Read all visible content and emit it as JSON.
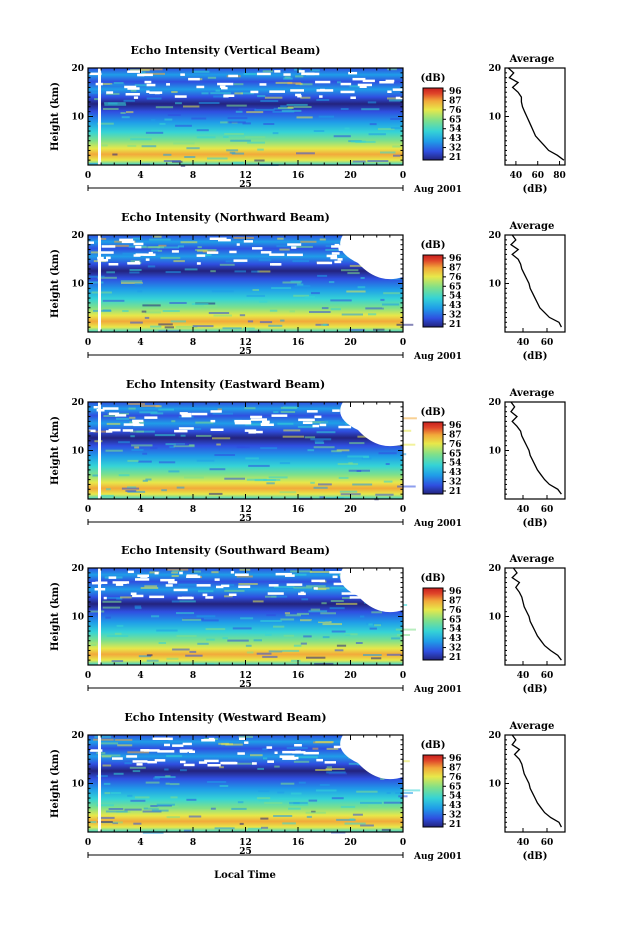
{
  "figure": {
    "bottom_label": "Local Time",
    "date_month_year": "Aug 2001",
    "day_label": "25"
  },
  "colorscale": {
    "unit_label": "(dB)",
    "ticks": [
      "96",
      "87",
      "76",
      "65",
      "54",
      "43",
      "32",
      "21"
    ],
    "colors": [
      "#23237d",
      "#2f4fe0",
      "#1f9de8",
      "#35d3d6",
      "#7fe08a",
      "#e8e84a",
      "#f2a93a",
      "#e0472a",
      "#c81e1e"
    ]
  },
  "chart_data": [
    {
      "type": "heatmap",
      "title": "Echo Intensity (Vertical Beam)",
      "ylabel": "Height (km)",
      "x_ticks": [
        "0",
        "4",
        "8",
        "12",
        "16",
        "20",
        "0"
      ],
      "y_ticks": [
        "20",
        "10"
      ],
      "ylim": [
        0,
        20
      ],
      "xlim": [
        0,
        24
      ],
      "colorbar_range_db": [
        21,
        96
      ],
      "average_profile": {
        "title": "Average",
        "xlabel": "(dB)",
        "x_ticks": [
          "40",
          "60",
          "80"
        ],
        "xlim": [
          30,
          85
        ],
        "heights_km": [
          1,
          2,
          3,
          4,
          5,
          6,
          7,
          8,
          9,
          10,
          11,
          12,
          13,
          14,
          15,
          16,
          17,
          18,
          19,
          20
        ],
        "values_db": [
          84,
          78,
          70,
          66,
          62,
          58,
          56,
          54,
          52,
          50,
          48,
          46,
          45,
          45,
          42,
          37,
          42,
          34,
          38,
          33
        ]
      }
    },
    {
      "type": "heatmap",
      "title": "Echo Intensity (Northward Beam)",
      "ylabel": "Height (km)",
      "x_ticks": [
        "0",
        "4",
        "8",
        "12",
        "16",
        "20",
        "0"
      ],
      "y_ticks": [
        "20",
        "10"
      ],
      "ylim": [
        0,
        20
      ],
      "xlim": [
        0,
        24
      ],
      "colorbar_range_db": [
        21,
        96
      ],
      "average_profile": {
        "title": "Average",
        "xlabel": "(dB)",
        "x_ticks": [
          "40",
          "60"
        ],
        "xlim": [
          25,
          75
        ],
        "heights_km": [
          1,
          2,
          3,
          4,
          5,
          6,
          7,
          8,
          9,
          10,
          11,
          12,
          13,
          14,
          15,
          16,
          17,
          18,
          19,
          20
        ],
        "values_db": [
          72,
          70,
          62,
          58,
          54,
          52,
          50,
          48,
          46,
          45,
          43,
          41,
          39,
          38,
          36,
          31,
          36,
          30,
          34,
          31
        ]
      }
    },
    {
      "type": "heatmap",
      "title": "Echo Intensity (Eastward Beam)",
      "ylabel": "Height (km)",
      "x_ticks": [
        "0",
        "4",
        "8",
        "12",
        "16",
        "20",
        "0"
      ],
      "y_ticks": [
        "20",
        "10"
      ],
      "ylim": [
        0,
        20
      ],
      "xlim": [
        0,
        24
      ],
      "colorbar_range_db": [
        21,
        96
      ],
      "average_profile": {
        "title": "Average",
        "xlabel": "(dB)",
        "x_ticks": [
          "40",
          "60"
        ],
        "xlim": [
          25,
          75
        ],
        "heights_km": [
          1,
          2,
          3,
          4,
          5,
          6,
          7,
          8,
          9,
          10,
          11,
          12,
          13,
          14,
          15,
          16,
          17,
          18,
          19,
          20
        ],
        "values_db": [
          72,
          69,
          62,
          58,
          55,
          52,
          50,
          48,
          46,
          45,
          43,
          41,
          39,
          38,
          35,
          31,
          35,
          30,
          33,
          30
        ]
      }
    },
    {
      "type": "heatmap",
      "title": "Echo Intensity (Southward Beam)",
      "ylabel": "Height (km)",
      "x_ticks": [
        "0",
        "4",
        "8",
        "12",
        "16",
        "20",
        "0"
      ],
      "y_ticks": [
        "20",
        "10"
      ],
      "ylim": [
        0,
        20
      ],
      "xlim": [
        0,
        24
      ],
      "colorbar_range_db": [
        21,
        96
      ],
      "average_profile": {
        "title": "Average",
        "xlabel": "(dB)",
        "x_ticks": [
          "40",
          "60"
        ],
        "xlim": [
          25,
          75
        ],
        "heights_km": [
          1,
          2,
          3,
          4,
          5,
          6,
          7,
          8,
          9,
          10,
          11,
          12,
          13,
          14,
          15,
          16,
          17,
          18,
          19,
          20
        ],
        "values_db": [
          72,
          69,
          63,
          58,
          55,
          52,
          50,
          48,
          46,
          45,
          43,
          41,
          40,
          39,
          37,
          34,
          37,
          31,
          35,
          32
        ]
      }
    },
    {
      "type": "heatmap",
      "title": "Echo Intensity (Westward Beam)",
      "ylabel": "Height (km)",
      "x_ticks": [
        "0",
        "4",
        "8",
        "12",
        "16",
        "20",
        "0"
      ],
      "y_ticks": [
        "20",
        "10"
      ],
      "ylim": [
        0,
        20
      ],
      "xlim": [
        0,
        24
      ],
      "colorbar_range_db": [
        21,
        96
      ],
      "average_profile": {
        "title": "Average",
        "xlabel": "(dB)",
        "x_ticks": [
          "40",
          "60"
        ],
        "xlim": [
          25,
          75
        ],
        "heights_km": [
          1,
          2,
          3,
          4,
          5,
          6,
          7,
          8,
          9,
          10,
          11,
          12,
          13,
          14,
          15,
          16,
          17,
          18,
          19,
          20
        ],
        "values_db": [
          72,
          70,
          63,
          58,
          55,
          52,
          50,
          48,
          46,
          45,
          43,
          41,
          40,
          39,
          37,
          33,
          37,
          31,
          34,
          31
        ]
      }
    }
  ]
}
